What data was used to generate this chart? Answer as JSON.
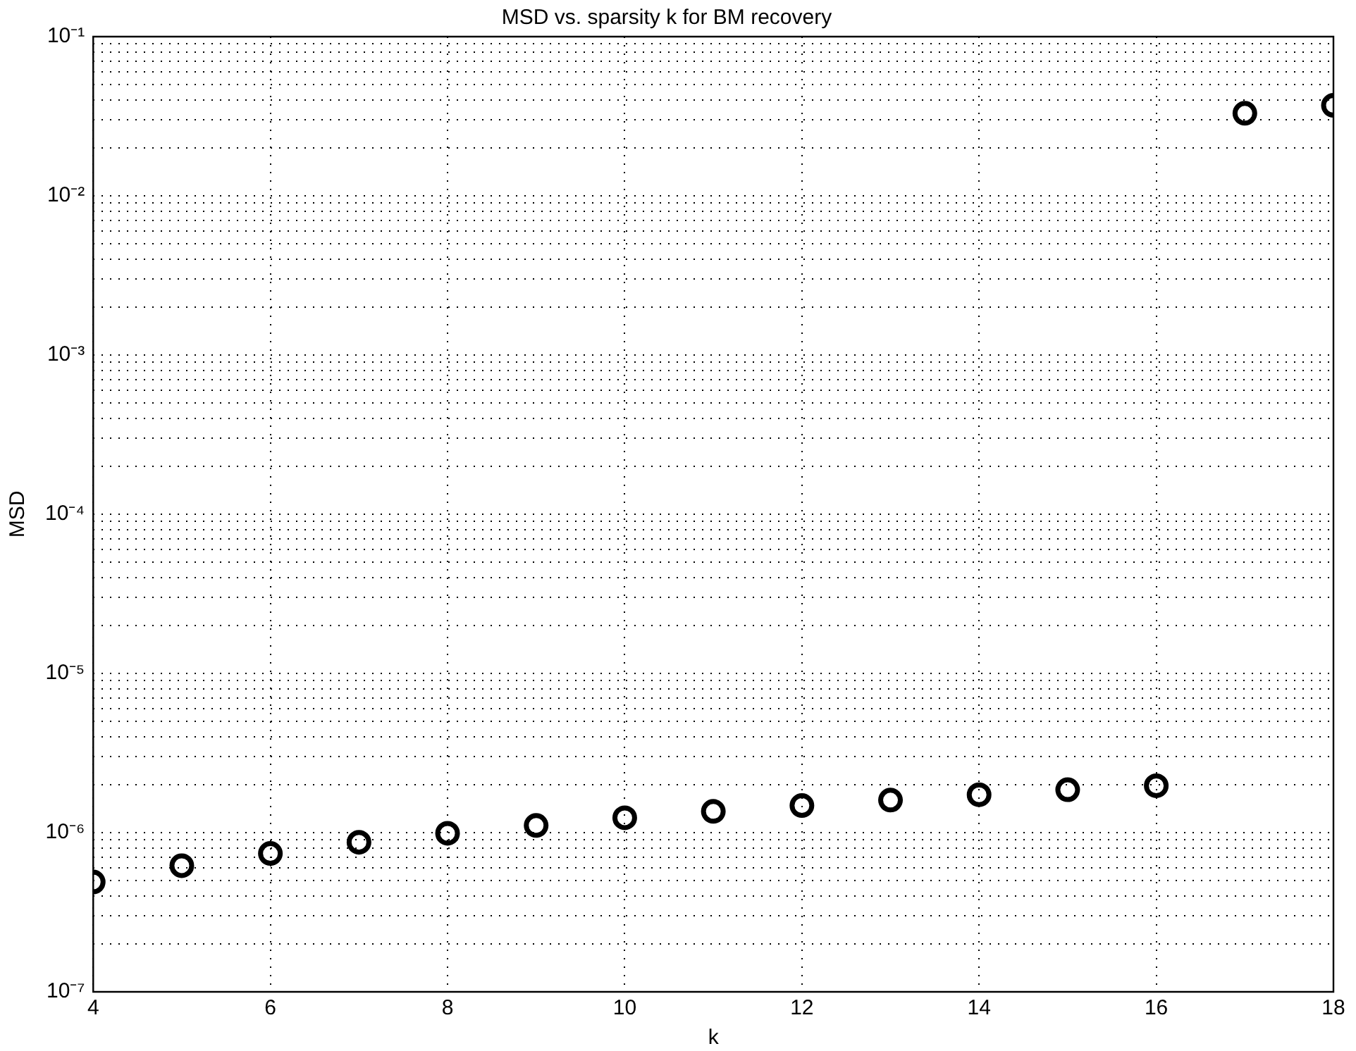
{
  "chart_data": {
    "type": "scatter",
    "title": "MSD vs. sparsity k for BM recovery",
    "xlabel": "k",
    "ylabel": "MSD",
    "x": [
      4,
      5,
      6,
      7,
      8,
      9,
      10,
      11,
      12,
      13,
      14,
      15,
      16,
      17,
      18
    ],
    "series": [
      {
        "color": "#000000",
        "values": [
          4.9e-07,
          6.2e-07,
          7.4e-07,
          8.7e-07,
          9.9e-07,
          1.11e-06,
          1.24e-06,
          1.36e-06,
          1.48e-06,
          1.6e-06,
          1.73e-06,
          1.86e-06,
          1.97e-06,
          0.033,
          0.037
        ]
      }
    ],
    "xlim": [
      4,
      18
    ],
    "xticks": [
      4,
      6,
      8,
      10,
      12,
      14,
      16,
      18
    ],
    "ylim": [
      1e-07,
      0.1
    ],
    "yticks": [
      {
        "value": 1e-07,
        "label": "10⁻⁷"
      },
      {
        "value": 2e-07,
        "label": null
      },
      {
        "value": 3e-07,
        "label": null
      },
      {
        "value": 4e-07,
        "label": null
      },
      {
        "value": 5e-07,
        "label": null
      },
      {
        "value": 6e-07,
        "label": null
      },
      {
        "value": 7e-07,
        "label": null
      },
      {
        "value": 8e-07,
        "label": null
      },
      {
        "value": 9e-07,
        "label": null
      },
      {
        "value": 1e-06,
        "label": "10⁻⁶"
      },
      {
        "value": 2e-06,
        "label": null
      },
      {
        "value": 3e-06,
        "label": null
      },
      {
        "value": 4e-06,
        "label": null
      },
      {
        "value": 5e-06,
        "label": null
      },
      {
        "value": 6e-06,
        "label": null
      },
      {
        "value": 7e-06,
        "label": null
      },
      {
        "value": 8e-06,
        "label": null
      },
      {
        "value": 9e-06,
        "label": null
      },
      {
        "value": 1e-05,
        "label": "10⁻⁵"
      },
      {
        "value": 2e-05,
        "label": null
      },
      {
        "value": 3e-05,
        "label": null
      },
      {
        "value": 4e-05,
        "label": null
      },
      {
        "value": 5e-05,
        "label": null
      },
      {
        "value": 6e-05,
        "label": null
      },
      {
        "value": 7e-05,
        "label": null
      },
      {
        "value": 8e-05,
        "label": null
      },
      {
        "value": 9e-05,
        "label": null
      },
      {
        "value": 0.0001,
        "label": "10⁻⁴"
      },
      {
        "value": 0.0002,
        "label": null
      },
      {
        "value": 0.0003,
        "label": null
      },
      {
        "value": 0.0004,
        "label": null
      },
      {
        "value": 0.0005,
        "label": null
      },
      {
        "value": 0.0006,
        "label": null
      },
      {
        "value": 0.0007,
        "label": null
      },
      {
        "value": 0.0008,
        "label": null
      },
      {
        "value": 0.0009,
        "label": null
      },
      {
        "value": 0.001,
        "label": "10⁻³"
      },
      {
        "value": 0.002,
        "label": null
      },
      {
        "value": 0.003,
        "label": null
      },
      {
        "value": 0.004,
        "label": null
      },
      {
        "value": 0.005,
        "label": null
      },
      {
        "value": 0.006,
        "label": null
      },
      {
        "value": 0.007,
        "label": null
      },
      {
        "value": 0.008,
        "label": null
      },
      {
        "value": 0.009,
        "label": null
      },
      {
        "value": 0.01,
        "label": "10⁻²"
      },
      {
        "value": 0.02,
        "label": null
      },
      {
        "value": 0.03,
        "label": null
      },
      {
        "value": 0.04,
        "label": null
      },
      {
        "value": 0.05,
        "label": null
      },
      {
        "value": 0.06,
        "label": null
      },
      {
        "value": 0.07,
        "label": null
      },
      {
        "value": 0.08,
        "label": null
      },
      {
        "value": 0.09,
        "label": null
      },
      {
        "value": 0.1,
        "label": "10⁻¹"
      }
    ],
    "log": "y",
    "grid": true,
    "legend": false,
    "marker": "circle"
  }
}
